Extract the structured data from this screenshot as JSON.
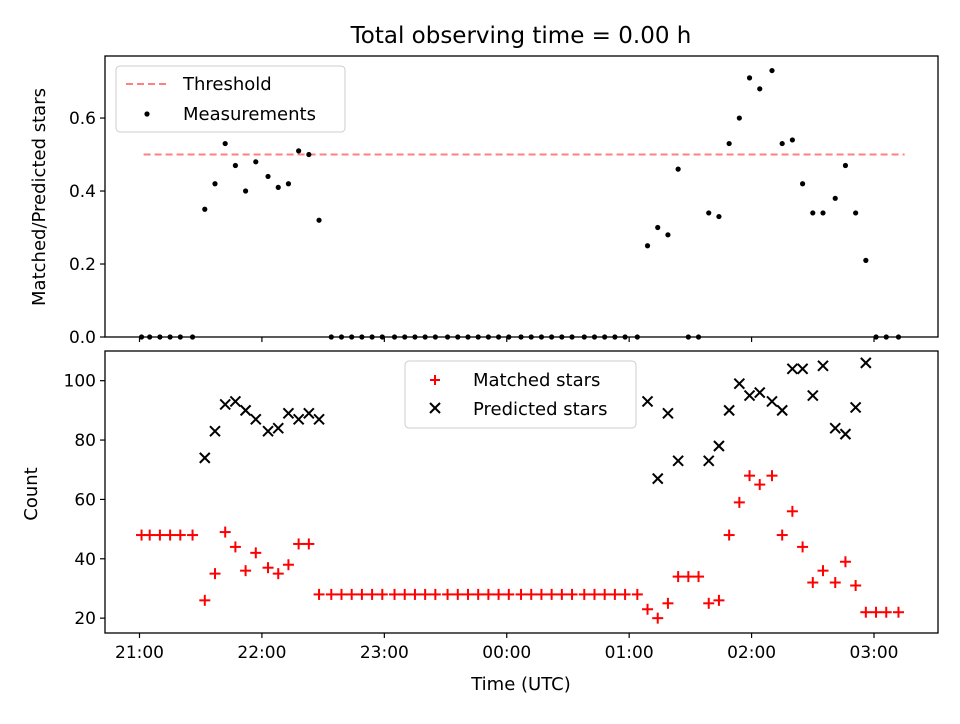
{
  "figure": {
    "title": "Total observing time = 0.00 h"
  },
  "x_axis": {
    "label": "Time (UTC)",
    "tick_labels": [
      "21:00",
      "22:00",
      "23:00",
      "00:00",
      "01:00",
      "02:00",
      "03:00"
    ]
  },
  "chart_data": [
    {
      "type": "scatter",
      "xlabel": "",
      "ylabel": "Matched/Predicted stars",
      "ylim": [
        0,
        0.77
      ],
      "xlim": [
        "20:52",
        "03:30"
      ],
      "yticks": [
        "0.0",
        "0.2",
        "0.4",
        "0.6"
      ],
      "grid": false,
      "legend": "top-left",
      "threshold": {
        "name": "Threshold",
        "y": 0.5,
        "x_range": [
          "21:02",
          "03:15"
        ],
        "color": "#ff8080",
        "style": "dashed"
      },
      "series": [
        {
          "name": "Measurements",
          "marker": "dot",
          "color": "#000000",
          "x": [
            "21:01",
            "21:05",
            "21:10",
            "21:15",
            "21:20",
            "21:26",
            "21:32",
            "21:37",
            "21:42",
            "21:47",
            "21:52",
            "21:57",
            "22:03",
            "22:08",
            "22:13",
            "22:18",
            "22:23",
            "22:28",
            "22:34",
            "22:39",
            "22:44",
            "22:49",
            "22:54",
            "22:59",
            "23:05",
            "23:10",
            "23:15",
            "23:20",
            "23:25",
            "23:31",
            "23:36",
            "23:41",
            "23:46",
            "23:51",
            "23:56",
            "00:01",
            "00:07",
            "00:12",
            "00:17",
            "00:22",
            "00:27",
            "00:32",
            "00:38",
            "00:43",
            "00:48",
            "00:53",
            "00:58",
            "01:04",
            "01:09",
            "01:14",
            "01:19",
            "01:24",
            "01:29",
            "01:34",
            "01:39",
            "01:44",
            "01:49",
            "01:54",
            "01:59",
            "02:04",
            "02:10",
            "02:15",
            "02:20",
            "02:25",
            "02:30",
            "02:35",
            "02:41",
            "02:46",
            "02:51",
            "02:56",
            "03:01",
            "03:06",
            "03:12"
          ],
          "y": [
            0,
            0,
            0,
            0,
            0,
            0,
            0.35,
            0.42,
            0.53,
            0.47,
            0.4,
            0.48,
            0.44,
            0.41,
            0.42,
            0.51,
            0.5,
            0.32,
            0,
            0,
            0,
            0,
            0,
            0,
            0,
            0,
            0,
            0,
            0,
            0,
            0,
            0,
            0,
            0,
            0,
            0,
            0,
            0,
            0,
            0,
            0,
            0,
            0,
            0,
            0,
            0,
            0,
            0,
            0.25,
            0.3,
            0.28,
            0.46,
            0,
            0,
            0.34,
            0.33,
            0.53,
            0.6,
            0.71,
            0.68,
            0.73,
            0.53,
            0.54,
            0.42,
            0.34,
            0.34,
            0.38,
            0.47,
            0.34,
            0.21,
            0,
            0,
            0
          ]
        }
      ]
    },
    {
      "type": "scatter",
      "xlabel": "Time (UTC)",
      "ylabel": "Count",
      "ylim": [
        15,
        110
      ],
      "xlim": [
        "20:52",
        "03:30"
      ],
      "yticks": [
        "20",
        "40",
        "60",
        "80",
        "100"
      ],
      "grid": false,
      "legend": "top-center",
      "series": [
        {
          "name": "Matched stars",
          "marker": "plus",
          "color": "#ff0000",
          "x": [
            "21:01",
            "21:05",
            "21:10",
            "21:15",
            "21:20",
            "21:26",
            "21:32",
            "21:37",
            "21:42",
            "21:47",
            "21:52",
            "21:57",
            "22:03",
            "22:08",
            "22:13",
            "22:18",
            "22:23",
            "22:28",
            "22:34",
            "22:39",
            "22:44",
            "22:49",
            "22:54",
            "22:59",
            "23:05",
            "23:10",
            "23:15",
            "23:20",
            "23:25",
            "23:31",
            "23:36",
            "23:41",
            "23:46",
            "23:51",
            "23:56",
            "00:01",
            "00:07",
            "00:12",
            "00:17",
            "00:22",
            "00:27",
            "00:32",
            "00:38",
            "00:43",
            "00:48",
            "00:53",
            "00:58",
            "01:04",
            "01:09",
            "01:14",
            "01:19",
            "01:24",
            "01:29",
            "01:34",
            "01:39",
            "01:44",
            "01:49",
            "01:54",
            "01:59",
            "02:04",
            "02:10",
            "02:15",
            "02:20",
            "02:25",
            "02:30",
            "02:35",
            "02:41",
            "02:46",
            "02:51",
            "02:56",
            "03:01",
            "03:06",
            "03:12"
          ],
          "y": [
            48,
            48,
            48,
            48,
            48,
            48,
            26,
            35,
            49,
            44,
            36,
            42,
            37,
            35,
            38,
            45,
            45,
            28,
            28,
            28,
            28,
            28,
            28,
            28,
            28,
            28,
            28,
            28,
            28,
            28,
            28,
            28,
            28,
            28,
            28,
            28,
            28,
            28,
            28,
            28,
            28,
            28,
            28,
            28,
            28,
            28,
            28,
            28,
            23,
            20,
            25,
            34,
            34,
            34,
            25,
            26,
            48,
            59,
            68,
            65,
            68,
            48,
            56,
            44,
            32,
            36,
            32,
            39,
            31,
            22,
            22,
            22,
            22
          ]
        },
        {
          "name": "Predicted stars",
          "marker": "x",
          "color": "#000000",
          "x": [
            "21:32",
            "21:37",
            "21:42",
            "21:47",
            "21:52",
            "21:57",
            "22:03",
            "22:08",
            "22:13",
            "22:18",
            "22:23",
            "22:28",
            "01:09",
            "01:14",
            "01:19",
            "01:24",
            "01:39",
            "01:44",
            "01:49",
            "01:54",
            "01:59",
            "02:04",
            "02:10",
            "02:15",
            "02:20",
            "02:25",
            "02:30",
            "02:35",
            "02:41",
            "02:46",
            "02:51",
            "02:56"
          ],
          "y": [
            74,
            83,
            92,
            93,
            90,
            87,
            83,
            84,
            89,
            87,
            89,
            87,
            93,
            67,
            89,
            73,
            73,
            78,
            90,
            99,
            95,
            96,
            93,
            90,
            104,
            104,
            95,
            105,
            84,
            82,
            91,
            106
          ]
        }
      ]
    }
  ]
}
